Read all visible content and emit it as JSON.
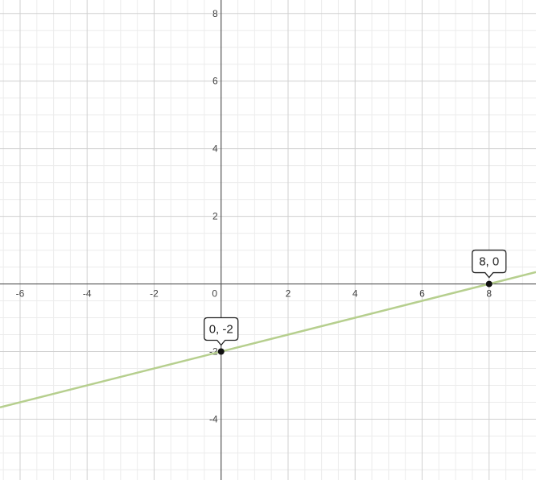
{
  "chart_data": {
    "type": "line",
    "xlim": [
      -6.6,
      9.4
    ],
    "ylim": [
      -5.8,
      8.4
    ],
    "grid": true,
    "x_ticks": [
      -6,
      -4,
      -2,
      0,
      2,
      4,
      6,
      8
    ],
    "y_ticks": [
      -4,
      -2,
      2,
      4,
      6,
      8
    ],
    "x_tick_labels": [
      "-6",
      "-4",
      "-2",
      "0",
      "2",
      "4",
      "6",
      "8"
    ],
    "y_tick_labels": [
      "-4",
      "-2",
      "2",
      "4",
      "6",
      "8"
    ],
    "series": [
      {
        "line_color": "#b6cf8e",
        "x": [
          -6.6,
          9.4
        ],
        "y": [
          -3.65,
          0.35
        ]
      }
    ],
    "points": [
      {
        "x": 0,
        "y": -2,
        "label": "0, -2"
      },
      {
        "x": 8,
        "y": 0,
        "label": "8, 0"
      }
    ]
  }
}
